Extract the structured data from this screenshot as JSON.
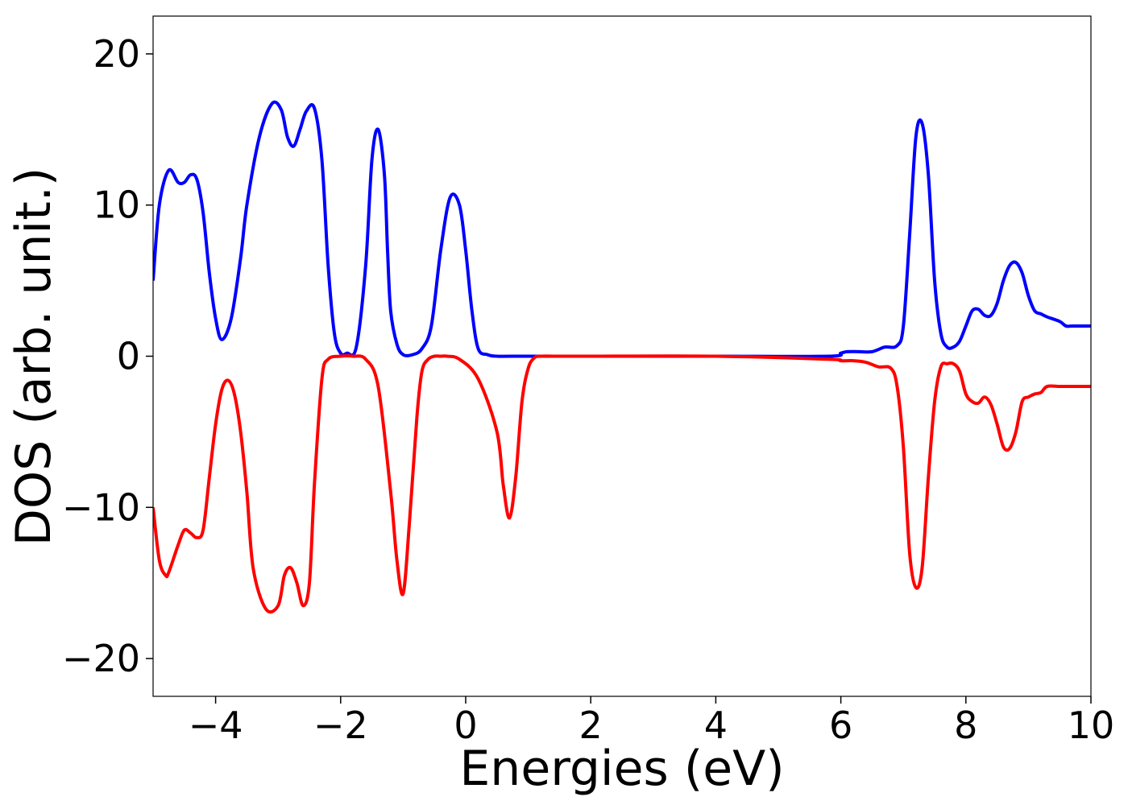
{
  "chart_data": {
    "type": "line",
    "title": "",
    "xlabel": "Energies (eV)",
    "ylabel": "DOS (arb. unit.)",
    "xlim": [
      -5,
      10
    ],
    "ylim": [
      -22.5,
      22.5
    ],
    "xticks": [
      -4,
      -2,
      0,
      2,
      4,
      6,
      8,
      10
    ],
    "xtick_labels": [
      "−4",
      "−2",
      "0",
      "2",
      "4",
      "6",
      "8",
      "10"
    ],
    "yticks": [
      -20,
      -10,
      0,
      10,
      20
    ],
    "ytick_labels": [
      "−20",
      "−10",
      "0",
      "10",
      "20"
    ],
    "grid": false,
    "legend": "none",
    "series": [
      {
        "color": "#0000ff",
        "x": [
          -5.0,
          -4.9,
          -4.75,
          -4.6,
          -4.5,
          -4.4,
          -4.3,
          -4.2,
          -4.1,
          -4.0,
          -3.9,
          -3.75,
          -3.6,
          -3.5,
          -3.3,
          -3.1,
          -2.95,
          -2.85,
          -2.75,
          -2.65,
          -2.55,
          -2.42,
          -2.3,
          -2.2,
          -2.1,
          -2.0,
          -1.9,
          -1.75,
          -1.6,
          -1.5,
          -1.4,
          -1.3,
          -1.25,
          -1.2,
          -1.1,
          -1.0,
          -0.85,
          -0.7,
          -0.55,
          -0.4,
          -0.25,
          -0.1,
          0.0,
          0.1,
          0.2,
          0.35,
          0.5,
          0.8,
          2.0,
          4.0,
          5.8,
          6.0,
          6.1,
          6.3,
          6.5,
          6.7,
          6.9,
          7.0,
          7.1,
          7.2,
          7.3,
          7.4,
          7.5,
          7.6,
          7.7,
          7.8,
          7.9,
          8.0,
          8.1,
          8.2,
          8.3,
          8.4,
          8.5,
          8.6,
          8.7,
          8.8,
          8.9,
          9.0,
          9.1,
          9.2,
          9.3,
          9.5,
          9.6,
          9.7,
          9.8,
          9.9,
          10.0
        ],
        "y": [
          5.0,
          10.0,
          12.3,
          11.5,
          11.5,
          12.0,
          11.7,
          9.5,
          5.5,
          2.5,
          1.1,
          2.5,
          6.5,
          10.0,
          14.5,
          16.7,
          16.3,
          14.5,
          13.9,
          15.0,
          16.2,
          16.4,
          13.0,
          6.0,
          1.5,
          0.2,
          0.2,
          0.6,
          6.0,
          13.0,
          15.0,
          12.0,
          7.0,
          3.0,
          0.8,
          0.1,
          0.1,
          0.5,
          2.0,
          7.0,
          10.5,
          10.0,
          7.0,
          3.0,
          0.5,
          0.1,
          0.0,
          0.0,
          0.0,
          0.0,
          0.0,
          0.2,
          0.3,
          0.3,
          0.3,
          0.6,
          0.7,
          2.0,
          8.0,
          14.5,
          15.4,
          12.0,
          5.0,
          1.5,
          0.6,
          0.6,
          1.0,
          2.0,
          3.0,
          3.1,
          2.7,
          2.7,
          3.5,
          5.0,
          6.0,
          6.2,
          5.5,
          4.0,
          3.0,
          2.8,
          2.6,
          2.3,
          2.0,
          2.0,
          2.0,
          2.0,
          2.0
        ]
      },
      {
        "color": "#ff0000",
        "x": [
          -5.0,
          -4.9,
          -4.8,
          -4.75,
          -4.6,
          -4.5,
          -4.4,
          -4.3,
          -4.2,
          -4.1,
          -4.0,
          -3.9,
          -3.8,
          -3.7,
          -3.6,
          -3.5,
          -3.4,
          -3.2,
          -3.0,
          -2.9,
          -2.8,
          -2.7,
          -2.6,
          -2.5,
          -2.42,
          -2.3,
          -2.2,
          -2.0,
          -1.8,
          -1.6,
          -1.4,
          -1.2,
          -1.1,
          -1.0,
          -0.9,
          -0.78,
          -0.7,
          -0.6,
          -0.5,
          -0.4,
          -0.3,
          -0.1,
          0.2,
          0.5,
          0.6,
          0.7,
          0.8,
          0.9,
          1.0,
          1.1,
          1.2,
          1.4,
          1.6,
          2.0,
          4.0,
          5.8,
          6.0,
          6.2,
          6.4,
          6.6,
          6.8,
          6.9,
          7.0,
          7.1,
          7.2,
          7.3,
          7.4,
          7.5,
          7.6,
          7.7,
          7.8,
          7.9,
          8.0,
          8.1,
          8.2,
          8.3,
          8.4,
          8.5,
          8.6,
          8.7,
          8.8,
          8.9,
          9.0,
          9.1,
          9.2,
          9.3,
          9.5,
          9.7,
          9.8,
          9.9,
          10.0
        ],
        "y": [
          -10.0,
          -13.5,
          -14.5,
          -14.3,
          -12.5,
          -11.5,
          -11.7,
          -12.0,
          -11.5,
          -8.0,
          -4.5,
          -2.2,
          -1.6,
          -2.5,
          -5.0,
          -9.0,
          -14.0,
          -16.7,
          -16.5,
          -14.5,
          -14.0,
          -15.0,
          -16.5,
          -15.0,
          -8.5,
          -1.5,
          -0.2,
          0.0,
          0.0,
          -0.2,
          -2.0,
          -9.0,
          -13.5,
          -15.7,
          -11.0,
          -4.0,
          -1.0,
          -0.2,
          0.0,
          0.0,
          0.0,
          -0.2,
          -1.5,
          -5.0,
          -8.5,
          -10.7,
          -8.0,
          -3.0,
          -0.8,
          -0.1,
          0.0,
          0.0,
          0.0,
          0.0,
          0.0,
          -0.2,
          -0.3,
          -0.3,
          -0.4,
          -0.7,
          -0.8,
          -2.0,
          -6.0,
          -13.0,
          -15.3,
          -14.0,
          -8.0,
          -3.0,
          -0.7,
          -0.5,
          -0.5,
          -1.0,
          -2.5,
          -3.0,
          -3.1,
          -2.7,
          -3.2,
          -4.5,
          -6.0,
          -6.1,
          -5.0,
          -3.0,
          -2.7,
          -2.5,
          -2.4,
          -2.0,
          -2.0,
          -2.0,
          -2.0,
          -2.0,
          -2.0
        ]
      }
    ]
  }
}
